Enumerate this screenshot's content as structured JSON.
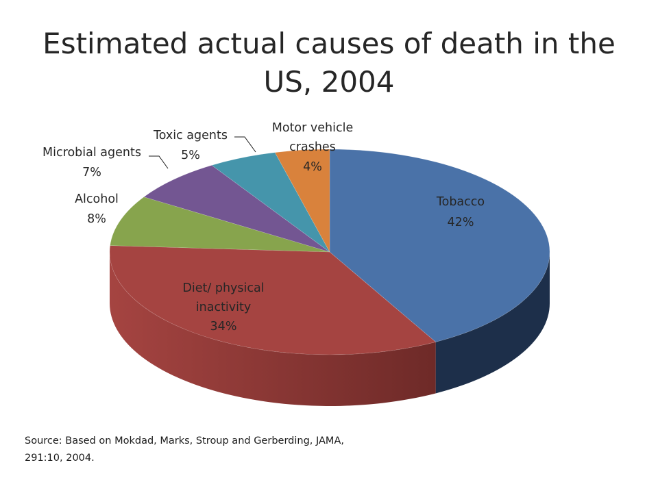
{
  "title": "Estimated actual causes of death in the US, 2004",
  "source": "Source: Based on Mokdad, Marks, Stroup and Gerberding, JAMA, 291:10, 2004.",
  "chart_data": {
    "type": "pie",
    "style": "3d",
    "title": "Estimated actual causes of death in the US, 2004",
    "labels": [
      "Tobacco",
      "Diet/ physical inactivity",
      "Alcohol",
      "Microbial agents",
      "Toxic agents",
      "Motor vehicle crashes"
    ],
    "values": [
      42,
      34,
      8,
      7,
      5,
      4
    ],
    "value_labels": [
      "42%",
      "34%",
      "8%",
      "7%",
      "5%",
      "4%"
    ],
    "colors": [
      "#4a72a8",
      "#a54441",
      "#87a44d",
      "#735692",
      "#4595ab",
      "#d9823c"
    ],
    "side_colors": [
      "#1d2f4a",
      "#6e2a28",
      "#5a6f31",
      "#4b3760",
      "#2b6273",
      "#9a5a26"
    ],
    "legend": false
  }
}
